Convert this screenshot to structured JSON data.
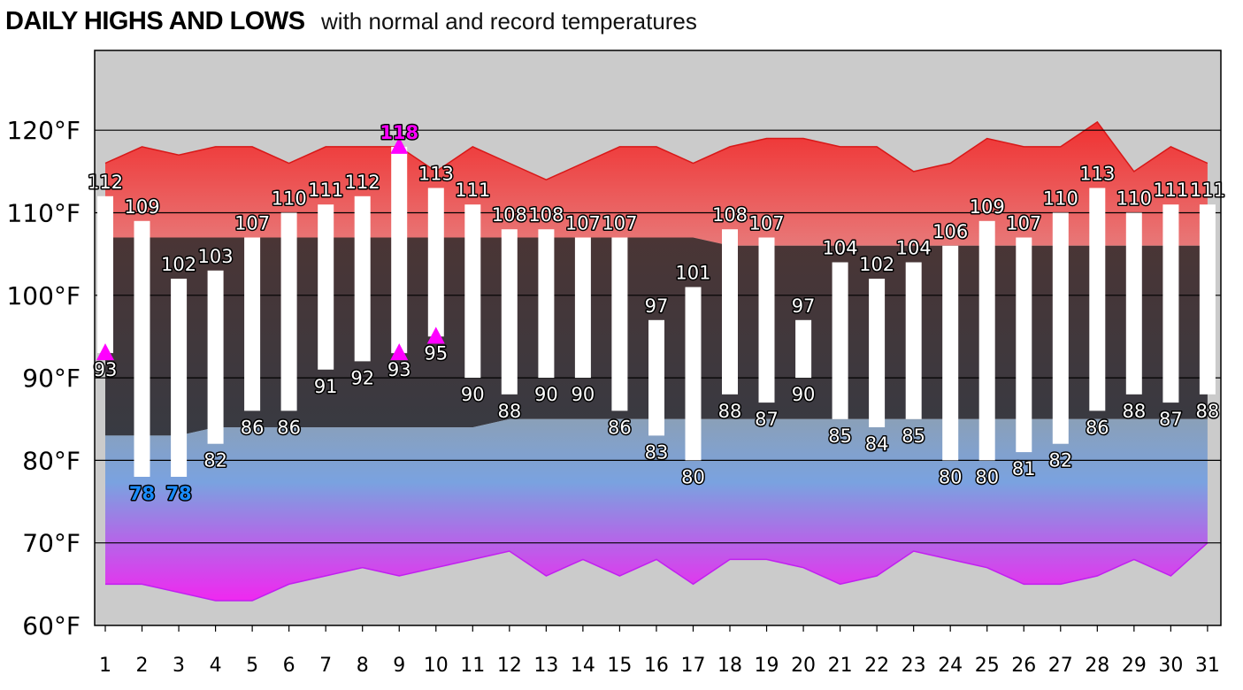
{
  "header": {
    "title": "DAILY HIGHS AND LOWS",
    "subtitle": "with normal and record temperatures"
  },
  "chart_data": {
    "type": "bar",
    "title": "DAILY HIGHS AND LOWS",
    "subtitle": "with normal and record temperatures",
    "ylim": [
      60,
      120
    ],
    "y_ticks": [
      60,
      70,
      80,
      90,
      100,
      110,
      120
    ],
    "y_tick_labels": [
      "60°F",
      "70°F",
      "80°F",
      "90°F",
      "100°F",
      "110°F",
      "120°F"
    ],
    "grid": true,
    "categories": [
      "1",
      "2",
      "3",
      "4",
      "5",
      "6",
      "7",
      "8",
      "9",
      "10",
      "11",
      "12",
      "13",
      "14",
      "15",
      "16",
      "17",
      "18",
      "19",
      "20",
      "21",
      "22",
      "23",
      "24",
      "25",
      "26",
      "27",
      "28",
      "29",
      "30",
      "31"
    ],
    "series": [
      {
        "name": "high",
        "values": [
          112,
          109,
          102,
          103,
          107,
          110,
          111,
          112,
          118,
          113,
          111,
          108,
          108,
          107,
          107,
          97,
          101,
          108,
          107,
          97,
          104,
          102,
          104,
          106,
          109,
          107,
          110,
          113,
          110,
          111,
          111
        ]
      },
      {
        "name": "low",
        "values": [
          93,
          78,
          78,
          82,
          86,
          86,
          91,
          92,
          93,
          95,
          90,
          88,
          90,
          90,
          86,
          83,
          80,
          88,
          87,
          90,
          85,
          84,
          85,
          80,
          80,
          81,
          82,
          86,
          88,
          87,
          88
        ]
      },
      {
        "name": "normal high",
        "values": [
          107,
          107,
          107,
          107,
          107,
          107,
          107,
          107,
          107,
          107,
          107,
          107,
          107,
          107,
          107,
          107,
          107,
          106,
          106,
          106,
          106,
          106,
          106,
          106,
          106,
          106,
          106,
          106,
          106,
          106,
          106
        ]
      },
      {
        "name": "normal low",
        "values": [
          83,
          83,
          83,
          84,
          84,
          84,
          84,
          84,
          84,
          84,
          84,
          85,
          85,
          85,
          85,
          85,
          85,
          85,
          85,
          85,
          85,
          85,
          85,
          85,
          85,
          85,
          85,
          85,
          85,
          85,
          85
        ]
      },
      {
        "name": "record high",
        "values": [
          116,
          118,
          117,
          118,
          118,
          116,
          118,
          118,
          118,
          115,
          118,
          116,
          114,
          116,
          118,
          118,
          116,
          118,
          119,
          119,
          118,
          118,
          115,
          116,
          119,
          118,
          118,
          121,
          115,
          118,
          116
        ]
      },
      {
        "name": "record low",
        "values": [
          65,
          65,
          64,
          63,
          63,
          65,
          66,
          67,
          66,
          67,
          68,
          69,
          66,
          68,
          66,
          68,
          65,
          68,
          68,
          67,
          65,
          66,
          69,
          68,
          67,
          65,
          65,
          66,
          68,
          66,
          70
        ]
      }
    ],
    "record_high_markers": [
      9
    ],
    "record_low_markers": [
      2,
      3
    ],
    "record_warm_low_markers": [
      1,
      9,
      10
    ],
    "colors": {
      "record_high_top": "#f03030",
      "record_high_bottom": "#e87878",
      "normal_band_top": "#4a3535",
      "normal_band_bottom": "#383a42",
      "low_band_top": "#8aa0b8",
      "low_band_mid": "#7aa2e0",
      "low_band_bottom": "#f028f0",
      "background": "#cbcbcb",
      "bar": "#ffffff",
      "marker": "#ff00ff",
      "record_low_label": "#1a8cff"
    }
  }
}
